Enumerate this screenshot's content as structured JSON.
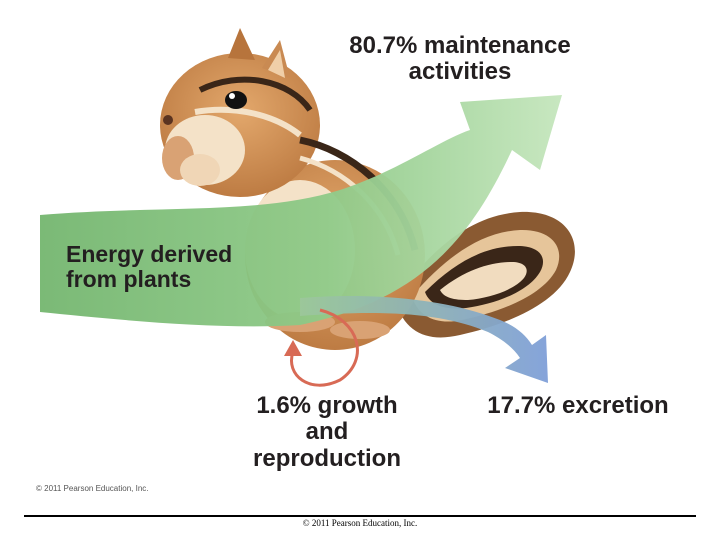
{
  "diagram": {
    "maintenance": {
      "line1": "80.7% maintenance",
      "line2": "activities"
    },
    "source": {
      "line1": "Energy derived",
      "line2": "from plants"
    },
    "growth": {
      "line1": "1.6% growth",
      "line2": "and",
      "line3": "reproduction"
    },
    "excretion": {
      "text": "17.7% excretion"
    },
    "copyright_small": "© 2011 Pearson Education, Inc.",
    "colors": {
      "main_arrow": "#7fc07f",
      "main_arrow_light": "#b8ddb0",
      "excretion_arrow": "#8da9d8",
      "growth_arrow": "#d86a55",
      "chipmunk_fur": "#c98a52",
      "chipmunk_belly": "#f4e2c8"
    },
    "icons": [
      "chipmunk-illustration",
      "energy-flow-arrow",
      "excretion-arrow",
      "growth-loop-arrow"
    ]
  },
  "footer": {
    "copyright": "© 2011 Pearson Education, Inc."
  }
}
